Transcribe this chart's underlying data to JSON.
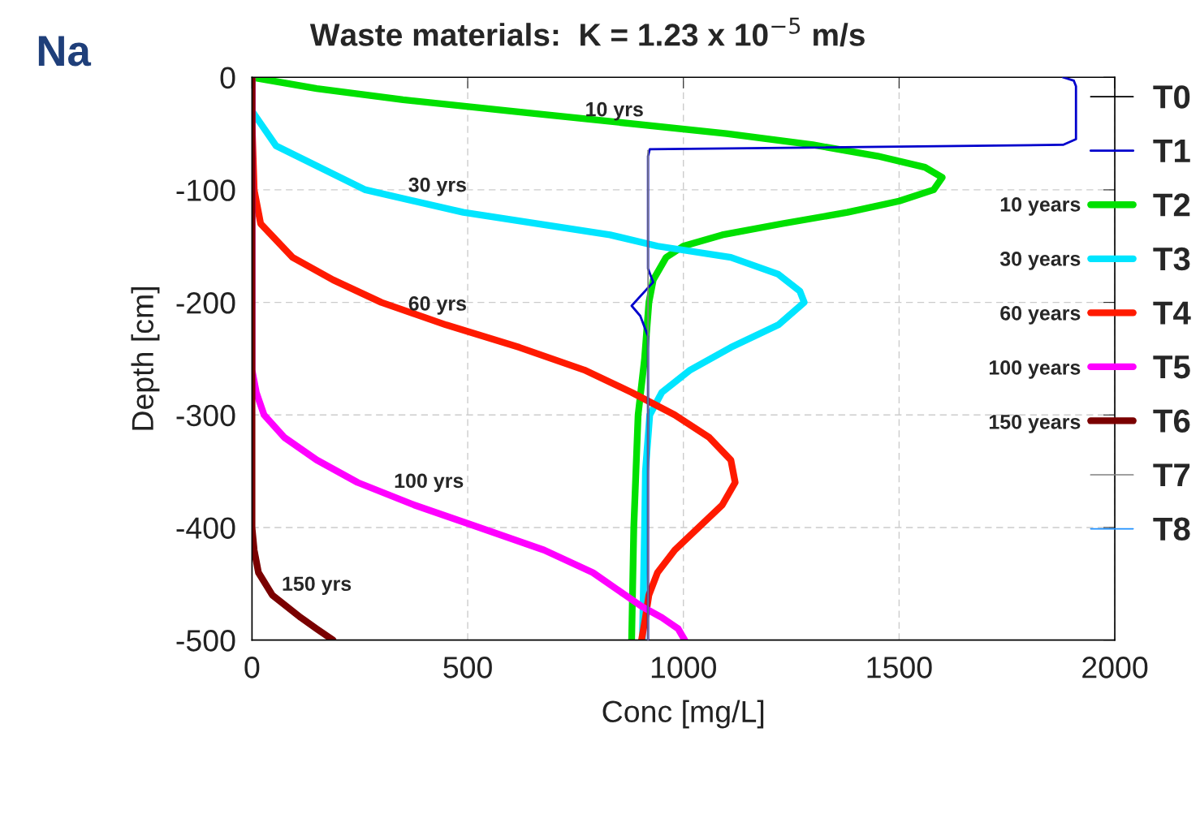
{
  "chart_data": {
    "type": "line",
    "title": "Waste materials:  K = 1.23 x 10$^{−5}$ m/s",
    "xlabel": "Conc [mg/L]",
    "ylabel": "Depth [cm]",
    "xlim": [
      0,
      2000
    ],
    "ylim": [
      -500,
      0
    ],
    "xticks": [
      0,
      500,
      1000,
      1500,
      2000
    ],
    "yticks": [
      -500,
      -400,
      -300,
      -200,
      -100,
      0
    ],
    "grid": true,
    "legend": "right",
    "marker": "none",
    "line_style": "solid",
    "series": [
      {
        "name": "T0",
        "color": "#000000"
      },
      {
        "name": "T1",
        "color": "#0000cc",
        "x": [
          1880,
          1905,
          1910,
          1910,
          1880,
          922,
          918,
          918,
          930,
          880,
          900,
          918,
          918
        ],
        "values": [
          0,
          -3,
          -8,
          -55,
          -60,
          -64,
          -70,
          -170,
          -182,
          -203,
          -212,
          -230,
          -500
        ]
      },
      {
        "name": "T2",
        "color": "#00e000",
        "x": [
          0,
          150,
          350,
          600,
          850,
          1100,
          1300,
          1450,
          1560,
          1600,
          1580,
          1500,
          1380,
          1230,
          1090,
          1000,
          960,
          930,
          920,
          910,
          895,
          885,
          880
        ],
        "values": [
          0,
          -10,
          -20,
          -30,
          -40,
          -50,
          -60,
          -70,
          -80,
          -89,
          -100,
          -110,
          -120,
          -130,
          -140,
          -150,
          -160,
          -180,
          -200,
          -250,
          -300,
          -400,
          -500
        ]
      },
      {
        "name": "T3",
        "color": "#00e5ff",
        "x": [
          0,
          0,
          56,
          263,
          490,
          830,
          940,
          1110,
          1220,
          1270,
          1280,
          1220,
          1110,
          1016,
          950,
          922,
          912,
          910,
          905
        ],
        "values": [
          0,
          -30,
          -61,
          -100,
          -120,
          -140,
          -150,
          -160,
          -175,
          -190,
          -200,
          -220,
          -240,
          -260,
          -280,
          -300,
          -350,
          -400,
          -500
        ]
      },
      {
        "name": "T4",
        "color": "#ff1a00",
        "x": [
          0,
          0,
          5,
          20,
          94,
          188,
          300,
          450,
          620,
          770,
          880,
          980,
          1060,
          1110,
          1120,
          1090,
          1035,
          980,
          940,
          920,
          912,
          903
        ],
        "values": [
          0,
          -40,
          -100,
          -130,
          -160,
          -180,
          -200,
          -220,
          -240,
          -260,
          -280,
          -300,
          -320,
          -340,
          -360,
          -380,
          -400,
          -420,
          -440,
          -460,
          -480,
          -500
        ]
      },
      {
        "name": "T5",
        "color": "#ff00ff",
        "x": [
          0,
          0,
          10,
          28,
          75,
          150,
          245,
          376,
          527,
          677,
          790,
          865,
          903,
          950,
          988,
          1003
        ],
        "values": [
          0,
          -260,
          -280,
          -300,
          -320,
          -340,
          -360,
          -380,
          -400,
          -420,
          -440,
          -460,
          -470,
          -480,
          -490,
          -500
        ]
      },
      {
        "name": "T6",
        "color": "#7a0000",
        "x": [
          0,
          0,
          5,
          15,
          47,
          113,
          150,
          188
        ],
        "values": [
          0,
          -400,
          -420,
          -440,
          -460,
          -480,
          -490,
          -500
        ]
      },
      {
        "name": "T7",
        "color": "#808080",
        "x": [
          918,
          918
        ],
        "values": [
          -65,
          -500
        ]
      },
      {
        "name": "T8",
        "color": "#1e90ff"
      }
    ],
    "annotations": [
      "Na",
      "10 yrs",
      "30 yrs",
      "60 yrs",
      "100 yrs",
      "150 yrs",
      "10 years",
      "30 years",
      "60 years",
      "100 years",
      "150 years"
    ]
  }
}
